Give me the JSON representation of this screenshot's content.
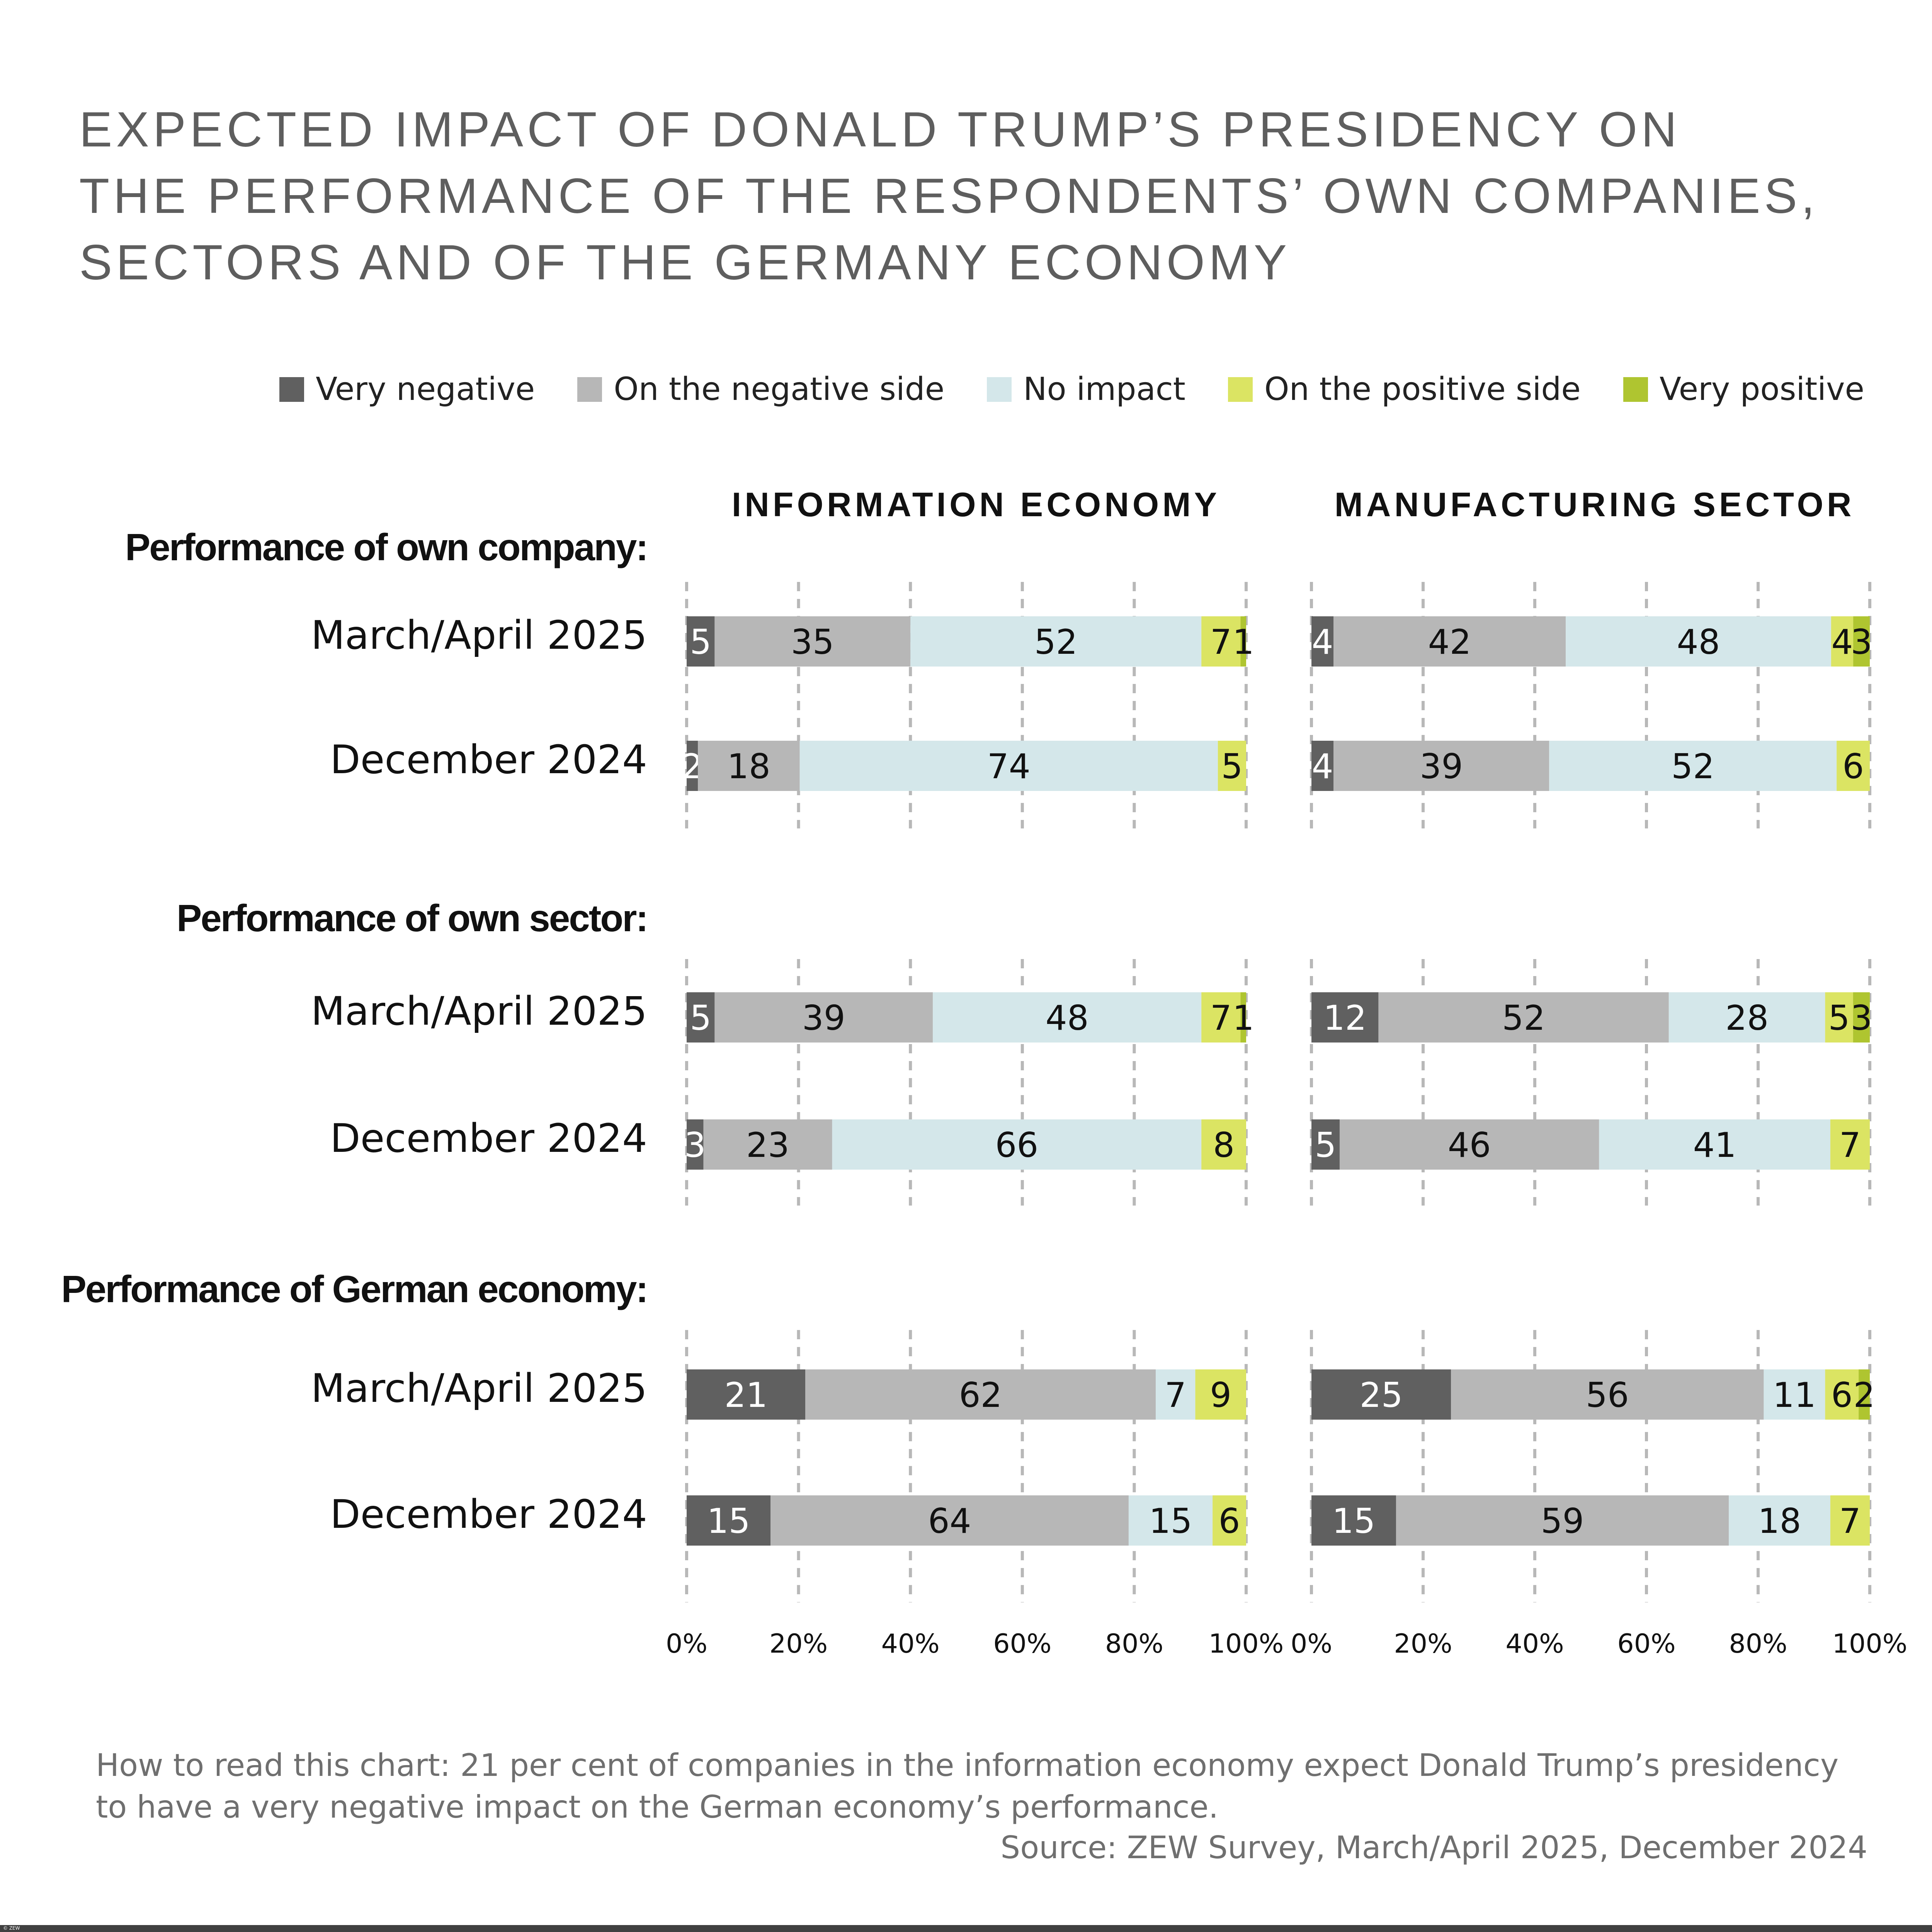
{
  "title": [
    "EXPECTED IMPACT OF DONALD TRUMP’S PRESIDENCY ON",
    "THE PERFORMANCE OF THE RESPONDENTS’ OWN COMPANIES,",
    "SECTORS AND OF THE GERMANY ECONOMY"
  ],
  "note": "How to read this chart: 21 per cent of companies in the information economy expect Donald Trump’s presidency to have a very negative impact on the German economy’s performance.",
  "source": "Source: ZEW Survey, March/April 2025, December 2024",
  "copyright": "© ZEW",
  "chart_data": {
    "type": "bar",
    "orientation": "horizontal",
    "stacked": true,
    "legend_position": "top-right",
    "grid": "vertical dotted",
    "xlim": [
      0,
      100
    ],
    "ticks": [
      "0%",
      "20%",
      "40%",
      "60%",
      "80%",
      "100%"
    ],
    "legend": [
      {
        "name": "Very negative",
        "color": "#606060"
      },
      {
        "name": "On the negative side",
        "color": "#b7b7b7"
      },
      {
        "name": "No impact",
        "color": "#d4e7ea"
      },
      {
        "name": "On the positive side",
        "color": "#dbe463"
      },
      {
        "name": "Very positive",
        "color": "#afc530"
      }
    ],
    "panels": [
      "INFORMATION ECONOMY",
      "MANUFACTURING SECTOR"
    ],
    "groups": [
      {
        "label": "Performance of own company:",
        "rows": [
          {
            "label": "March/April 2025",
            "values": [
              [
                5,
                35,
                52,
                7,
                1
              ],
              [
                4,
                42,
                48,
                4,
                3
              ]
            ]
          },
          {
            "label": "December 2024",
            "values": [
              [
                2,
                18,
                74,
                5,
                0
              ],
              [
                4,
                39,
                52,
                6,
                0
              ]
            ]
          }
        ]
      },
      {
        "label": "Performance of own sector:",
        "rows": [
          {
            "label": "March/April 2025",
            "values": [
              [
                5,
                39,
                48,
                7,
                1
              ],
              [
                12,
                52,
                28,
                5,
                3
              ]
            ]
          },
          {
            "label": "December 2024",
            "values": [
              [
                3,
                23,
                66,
                8,
                0
              ],
              [
                5,
                46,
                41,
                7,
                0
              ]
            ]
          }
        ]
      },
      {
        "label": "Performance of German economy:",
        "rows": [
          {
            "label": "March/April 2025",
            "values": [
              [
                21,
                62,
                7,
                9,
                0
              ],
              [
                25,
                56,
                11,
                6,
                2
              ]
            ]
          },
          {
            "label": "December 2024",
            "values": [
              [
                15,
                64,
                15,
                6,
                0
              ],
              [
                15,
                59,
                18,
                7,
                0
              ]
            ]
          }
        ]
      }
    ]
  }
}
